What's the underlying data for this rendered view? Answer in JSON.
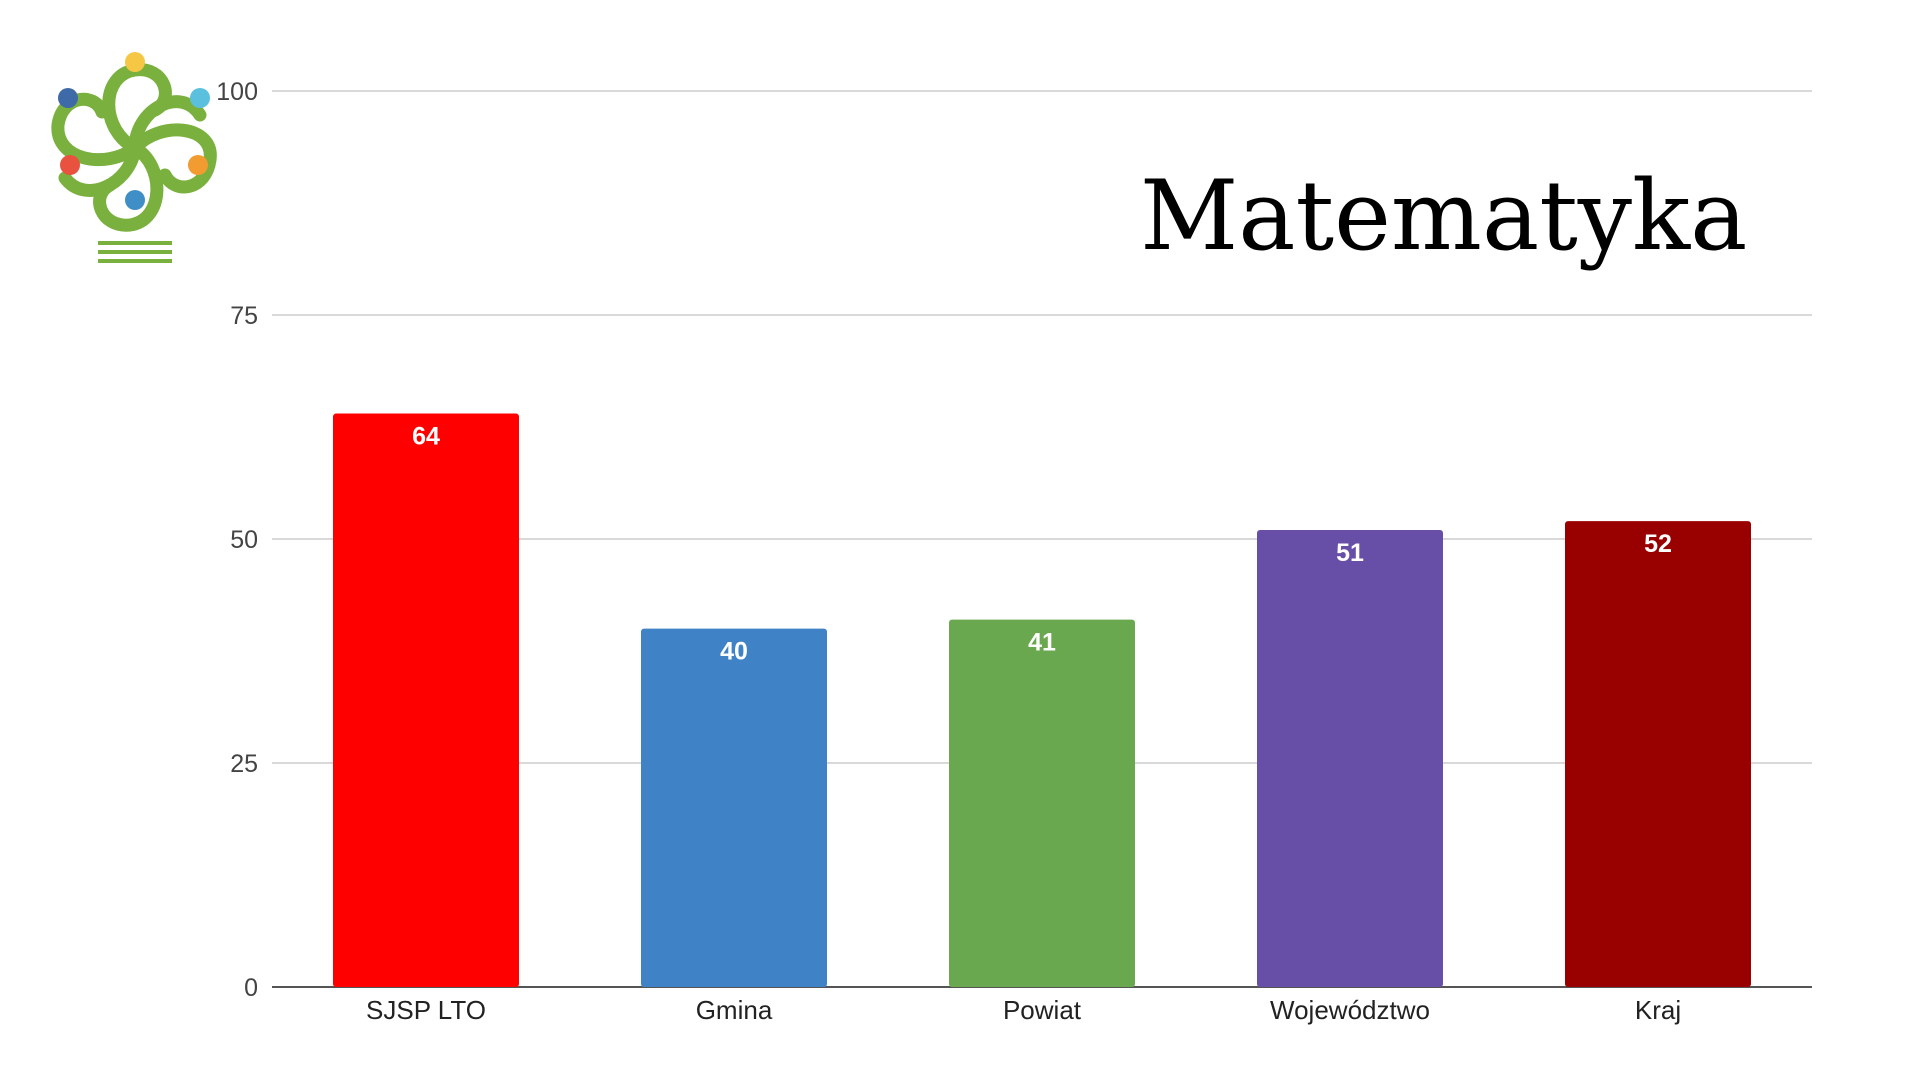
{
  "chart_data": {
    "type": "bar",
    "title": "Matematyka",
    "categories": [
      "SJSP LTO",
      "Gmina",
      "Powiat",
      "Województwo",
      "Kraj"
    ],
    "values": [
      64,
      40,
      41,
      51,
      52
    ],
    "data_labels": [
      "64",
      "40",
      "41",
      "51",
      "52"
    ],
    "colors": [
      "#ff0000",
      "#3f83c6",
      "#6aa84f",
      "#674ea7",
      "#990000"
    ],
    "ylim": [
      0,
      100
    ],
    "yticks": [
      0,
      25,
      50,
      75,
      100
    ],
    "ytick_labels": [
      "0",
      "25",
      "50",
      "75",
      "100"
    ],
    "grid": true,
    "legend": "none",
    "xlabel": "",
    "ylabel": ""
  },
  "logo": {
    "name": "school-logo",
    "stroke_color": "#7ab03e",
    "dot_colors": [
      "#f6c744",
      "#5bc0de",
      "#f29b30",
      "#3f8fc6",
      "#e8523f",
      "#3e6aa8"
    ]
  }
}
